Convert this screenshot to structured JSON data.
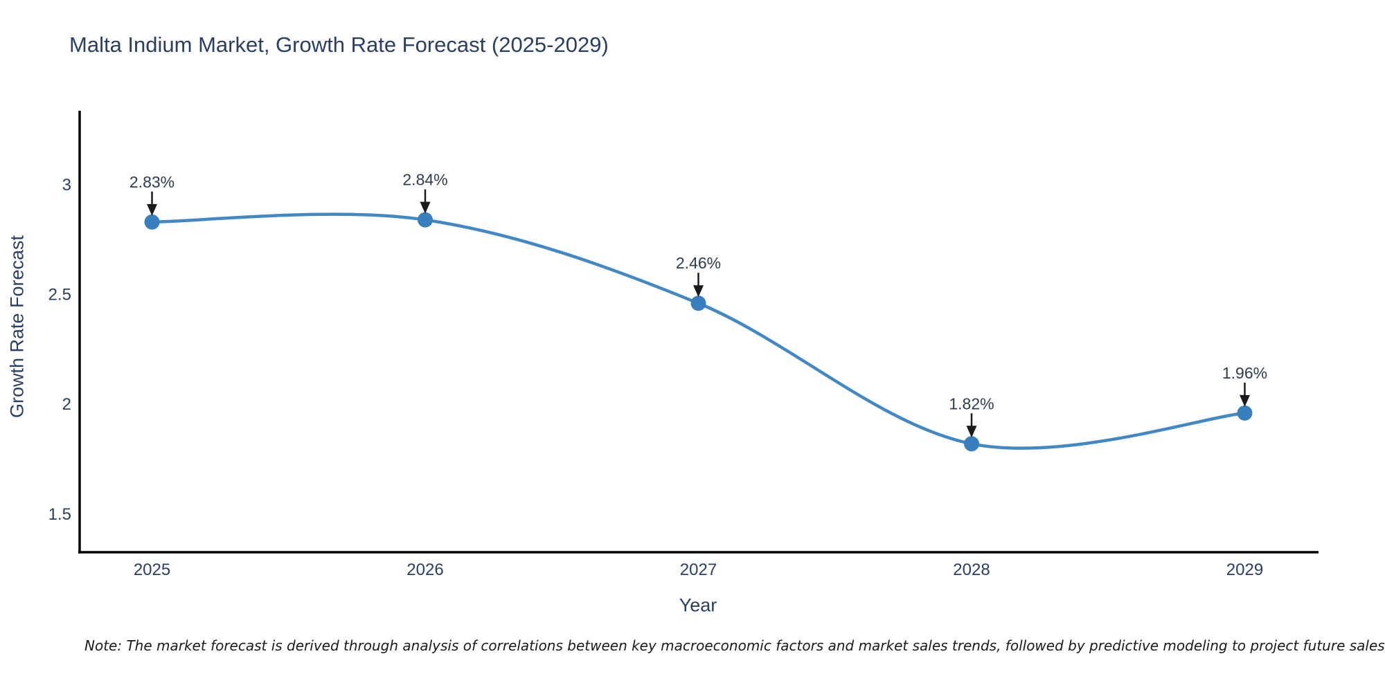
{
  "footnote": "Note: The market forecast is derived through analysis of correlations between key macroeconomic factors and market sales trends, followed by predictive modeling to project future sales",
  "chart_data": {
    "type": "line",
    "title": "Malta Indium Market, Growth Rate Forecast (2025-2029)",
    "xlabel": "Year",
    "ylabel": "Growth Rate Forecast",
    "x": [
      2025,
      2026,
      2027,
      2028,
      2029
    ],
    "x_tick_labels": [
      "2025",
      "2026",
      "2027",
      "2028",
      "2029"
    ],
    "series": [
      {
        "name": "Growth Rate Forecast",
        "values": [
          2.83,
          2.84,
          2.46,
          1.82,
          1.96
        ]
      }
    ],
    "point_labels": [
      "2.83%",
      "2.84%",
      "2.46%",
      "1.82%",
      "1.96%"
    ],
    "y_ticks": [
      1.5,
      2,
      2.5,
      3
    ],
    "xlim": [
      2024.73,
      2029.27
    ],
    "ylim": [
      1.326,
      3.337
    ],
    "line_shape": "spline",
    "grid": false,
    "legend": "none",
    "colors": {
      "line": "#4288c5",
      "marker": "#3a7fbd",
      "axis": "#000000",
      "tick_text": "#2a3f5f",
      "annotation_text": "#2f3b4c",
      "arrow": "#1a1a1a",
      "background": "#ffffff"
    }
  }
}
